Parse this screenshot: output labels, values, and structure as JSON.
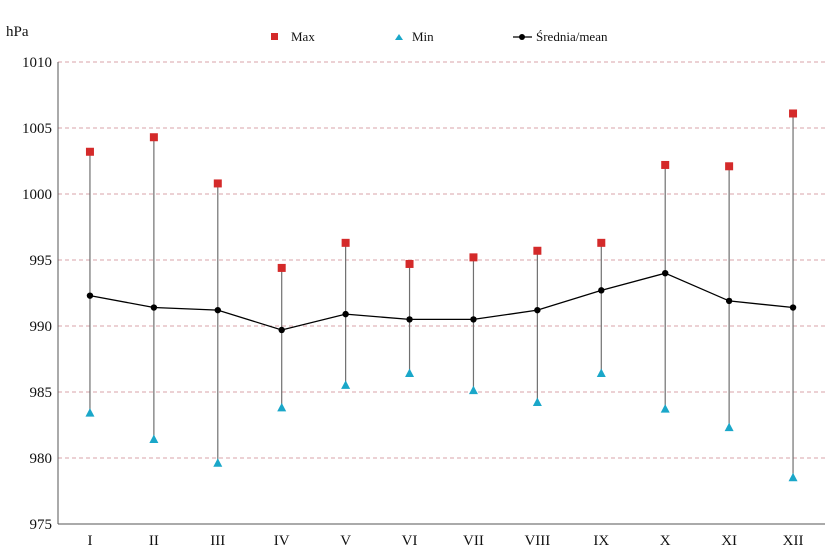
{
  "chart_data": {
    "type": "scatter",
    "unit_label": "hPa",
    "categories": [
      "I",
      "II",
      "III",
      "IV",
      "V",
      "VI",
      "VII",
      "VIII",
      "IX",
      "X",
      "XI",
      "XII"
    ],
    "y_ticks": [
      975,
      980,
      985,
      990,
      995,
      1000,
      1005,
      1010
    ],
    "ylim": [
      975,
      1010
    ],
    "grid": true,
    "legend_position": "top",
    "series": [
      {
        "name": "Max",
        "marker": "square",
        "color": "#d42a2a",
        "values": [
          1003.2,
          1004.3,
          1000.8,
          994.4,
          996.3,
          994.7,
          995.2,
          995.7,
          996.3,
          1002.2,
          1002.1,
          1006.1
        ]
      },
      {
        "name": "Min",
        "marker": "triangle",
        "color": "#1aa7c9",
        "values": [
          983.4,
          981.4,
          979.6,
          983.8,
          985.5,
          986.4,
          985.1,
          984.2,
          986.4,
          983.7,
          982.3,
          978.5
        ]
      },
      {
        "name": "Średnia/mean",
        "marker": "circle-line",
        "color": "#000000",
        "values": [
          992.3,
          991.4,
          991.2,
          989.7,
          990.9,
          990.5,
          990.5,
          991.2,
          992.7,
          994.0,
          991.9,
          991.4
        ]
      }
    ]
  }
}
